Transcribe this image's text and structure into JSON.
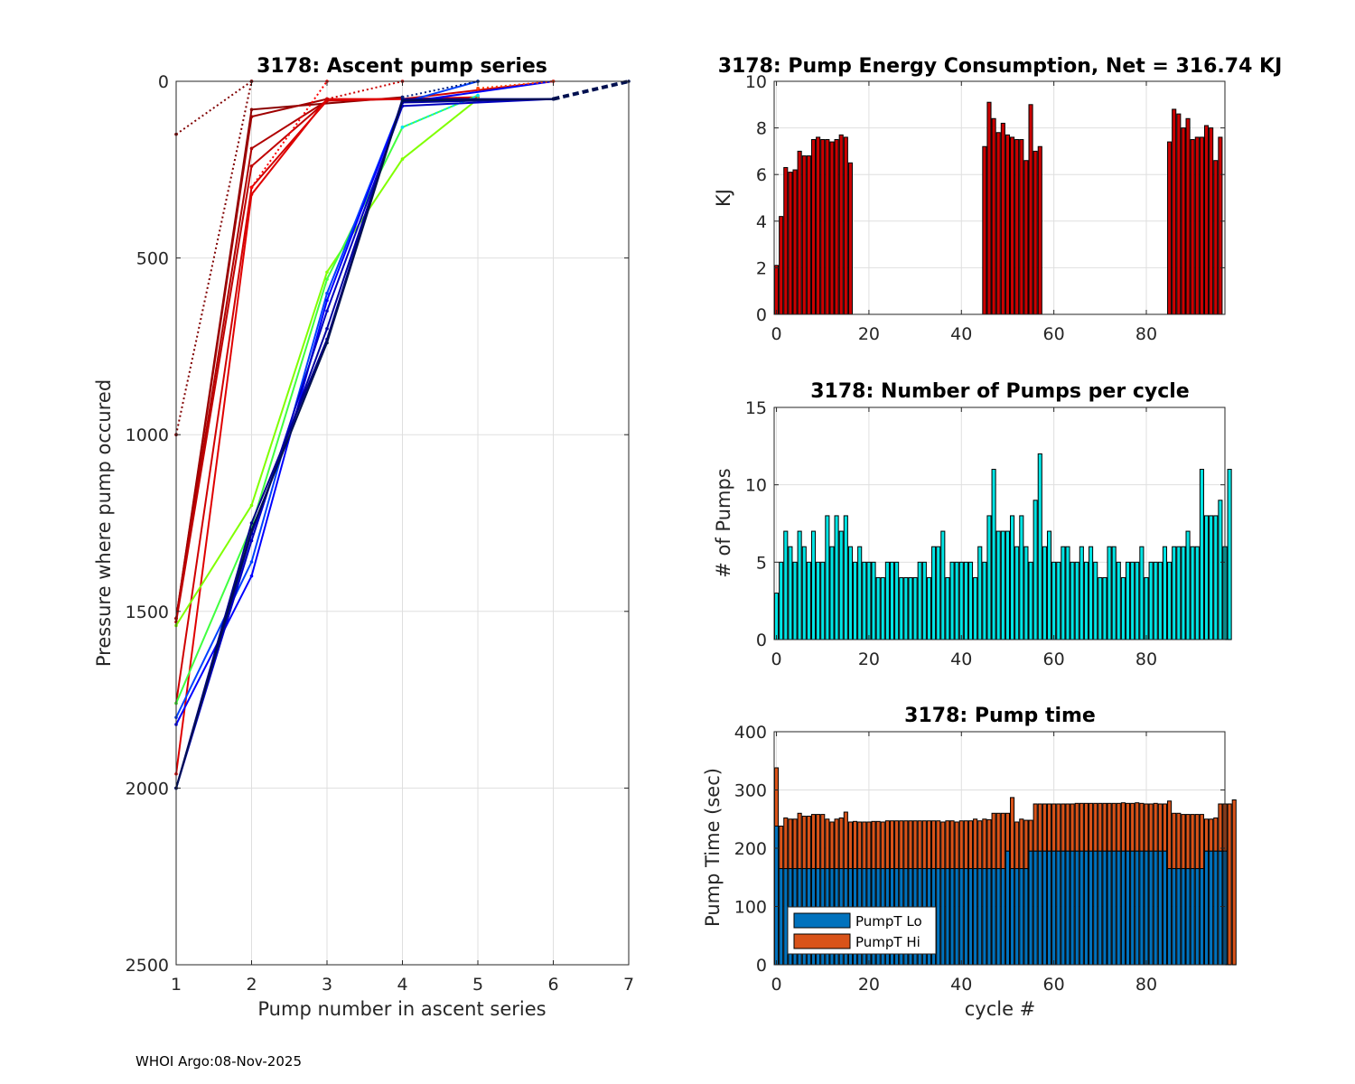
{
  "footer": "WHOI Argo:08-Nov-2025",
  "chart_data": [
    {
      "id": "ascent",
      "type": "line",
      "title": "3178: Ascent pump series",
      "xlabel": "Pump number in ascent series",
      "ylabel": "Pressure where pump occured",
      "xlim": [
        1,
        7
      ],
      "ylim": [
        0,
        2500
      ],
      "y_reversed": true,
      "xticks": [
        1,
        2,
        3,
        4,
        5,
        6,
        7
      ],
      "yticks": [
        0,
        500,
        1000,
        1500,
        2000,
        2500
      ],
      "grid": true,
      "series": [
        {
          "name": "cycle-0",
          "color": "#800000",
          "style": "dotted",
          "x": [
            1,
            2
          ],
          "y": [
            150,
            0
          ]
        },
        {
          "name": "cycle-1",
          "color": "#800000",
          "style": "dotted",
          "x": [
            1,
            2
          ],
          "y": [
            1000,
            0
          ]
        },
        {
          "name": "cycle-2",
          "color": "#8b0000",
          "style": "solid",
          "x": [
            1,
            2,
            4
          ],
          "y": [
            1520,
            80,
            45
          ]
        },
        {
          "name": "cycle-3",
          "color": "#a00000",
          "style": "solid",
          "x": [
            1,
            2,
            3
          ],
          "y": [
            1520,
            100,
            50
          ]
        },
        {
          "name": "cycle-4",
          "color": "#b00000",
          "style": "solid",
          "x": [
            1,
            2,
            3
          ],
          "y": [
            1520,
            190,
            55
          ]
        },
        {
          "name": "cycle-5",
          "color": "#c00000",
          "style": "solid",
          "x": [
            1,
            2,
            3
          ],
          "y": [
            1530,
            240,
            55
          ]
        },
        {
          "name": "cycle-6",
          "color": "#d00000",
          "style": "solid",
          "x": [
            1,
            2,
            3,
            4,
            6
          ],
          "y": [
            1760,
            300,
            55,
            50,
            0
          ]
        },
        {
          "name": "cycle-7",
          "color": "#e00000",
          "style": "solid",
          "x": [
            1,
            2,
            3,
            4,
            5
          ],
          "y": [
            1960,
            320,
            50,
            50,
            45
          ]
        },
        {
          "name": "cycle-8",
          "color": "#ff0000",
          "style": "dotted",
          "x": [
            2,
            3
          ],
          "y": [
            300,
            0
          ]
        },
        {
          "name": "cycle-9",
          "color": "#cc0000",
          "style": "dotted",
          "x": [
            3,
            4
          ],
          "y": [
            50,
            0
          ]
        },
        {
          "name": "cycle-10",
          "color": "#80ff00",
          "style": "solid",
          "x": [
            1,
            2,
            3,
            4,
            5
          ],
          "y": [
            1540,
            1200,
            540,
            220,
            50
          ]
        },
        {
          "name": "cycle-11",
          "color": "#40ff40",
          "style": "solid",
          "x": [
            1,
            2,
            3,
            4,
            5
          ],
          "y": [
            1760,
            1260,
            560,
            130,
            40
          ]
        },
        {
          "name": "cycle-12",
          "color": "#00e0ff",
          "style": "dotted",
          "x": [
            4,
            5
          ],
          "y": [
            130,
            40
          ]
        },
        {
          "name": "cycle-13",
          "color": "#0040ff",
          "style": "solid",
          "x": [
            1,
            2,
            3,
            4,
            5
          ],
          "y": [
            1800,
            1360,
            600,
            60,
            0
          ]
        },
        {
          "name": "cycle-14",
          "color": "#0000ff",
          "style": "solid",
          "x": [
            1,
            2,
            3,
            4,
            6
          ],
          "y": [
            1820,
            1400,
            620,
            60,
            0
          ]
        },
        {
          "name": "cycle-15",
          "color": "#0000c0",
          "style": "solid",
          "x": [
            1,
            2,
            3,
            4,
            6
          ],
          "y": [
            2000,
            1300,
            650,
            70,
            50
          ]
        },
        {
          "name": "cycle-16",
          "color": "#0000a0",
          "style": "solid",
          "x": [
            1,
            2,
            3,
            4,
            6
          ],
          "y": [
            2000,
            1280,
            700,
            60,
            50
          ]
        },
        {
          "name": "cycle-17",
          "color": "#00008b",
          "style": "solid",
          "x": [
            1,
            2,
            3,
            4,
            6
          ],
          "y": [
            2000,
            1250,
            730,
            50,
            50
          ]
        },
        {
          "name": "cycle-18",
          "color": "#001050",
          "style": "solid",
          "x": [
            1,
            2,
            3,
            4,
            6
          ],
          "y": [
            2000,
            1270,
            740,
            55,
            50
          ]
        },
        {
          "name": "cycle-19",
          "color": "#001050",
          "style": "dashed",
          "x": [
            6,
            7
          ],
          "y": [
            50,
            0
          ]
        },
        {
          "name": "cycle-20",
          "color": "#002080",
          "style": "dotted",
          "x": [
            4,
            5
          ],
          "y": [
            45,
            0
          ]
        },
        {
          "name": "cycle-21",
          "color": "#ff4000",
          "style": "dotted",
          "x": [
            5,
            6
          ],
          "y": [
            20,
            0
          ]
        }
      ]
    },
    {
      "id": "energy",
      "type": "bar",
      "title": "3178: Pump Energy Consumption,  Net = 316.74 KJ",
      "xlabel": "",
      "ylabel": "KJ",
      "xlim": [
        -0.5,
        97
      ],
      "ylim": [
        0,
        10
      ],
      "xticks": [
        0,
        20,
        40,
        60,
        80
      ],
      "yticks": [
        0,
        2,
        4,
        6,
        8,
        10
      ],
      "grid": true,
      "color": "#cc0000",
      "x": [
        0,
        1,
        2,
        3,
        4,
        5,
        6,
        7,
        8,
        9,
        10,
        11,
        12,
        13,
        14,
        15,
        16,
        45,
        46,
        47,
        48,
        49,
        50,
        51,
        52,
        53,
        54,
        55,
        56,
        57,
        85,
        86,
        87,
        88,
        89,
        90,
        91,
        92,
        93,
        94,
        95,
        96
      ],
      "values": [
        2.1,
        4.2,
        6.3,
        6.1,
        6.2,
        7.0,
        6.8,
        6.8,
        7.5,
        7.6,
        7.5,
        7.5,
        7.4,
        7.5,
        7.7,
        7.6,
        6.5,
        7.2,
        9.1,
        8.4,
        7.8,
        8.2,
        7.7,
        7.6,
        7.5,
        7.5,
        6.6,
        9.0,
        7.0,
        7.2,
        7.4,
        8.8,
        8.6,
        8.0,
        8.4,
        7.5,
        7.6,
        7.6,
        8.1,
        8.0,
        6.6,
        7.6
      ]
    },
    {
      "id": "pumps",
      "type": "bar",
      "title": "3178: Number of Pumps per cycle",
      "xlabel": "",
      "ylabel": "# of Pumps",
      "xlim": [
        -0.5,
        97
      ],
      "ylim": [
        0,
        15
      ],
      "xticks": [
        0,
        20,
        40,
        60,
        80
      ],
      "yticks": [
        0,
        5,
        10,
        15
      ],
      "grid": true,
      "color": "#00e5e5",
      "values": [
        3,
        5,
        7,
        6,
        5,
        7,
        6,
        5,
        7,
        5,
        5,
        8,
        6,
        8,
        7,
        8,
        6,
        5,
        6,
        5,
        5,
        5,
        4,
        4,
        5,
        5,
        5,
        4,
        4,
        4,
        4,
        5,
        5,
        4,
        6,
        6,
        7,
        4,
        5,
        5,
        5,
        5,
        5,
        4,
        6,
        5,
        8,
        11,
        7,
        7,
        7,
        8,
        6,
        8,
        6,
        5,
        9,
        12,
        6,
        7,
        5,
        5,
        6,
        6,
        5,
        5,
        6,
        5,
        6,
        5,
        4,
        4,
        6,
        6,
        5,
        4,
        5,
        5,
        5,
        6,
        4,
        5,
        5,
        5,
        6,
        5,
        6,
        6,
        6,
        7,
        6,
        6,
        11,
        8,
        8,
        8,
        9,
        6,
        11
      ]
    },
    {
      "id": "pumptime",
      "type": "stacked-bar",
      "title": "3178: Pump time",
      "xlabel": "cycle #",
      "ylabel": "Pump Time (sec)",
      "xlim": [
        -0.5,
        97
      ],
      "ylim": [
        0,
        400
      ],
      "xticks": [
        0,
        20,
        40,
        60,
        80
      ],
      "yticks": [
        0,
        100,
        200,
        300,
        400
      ],
      "grid": true,
      "legend_position": "bottom-left",
      "series": [
        {
          "name": "PumpT Lo",
          "color": "#0072bd",
          "segments": [
            {
              "from": 0,
              "to": 0,
              "value": 238
            },
            {
              "from": 1,
              "to": 49,
              "value": 165
            },
            {
              "from": 50,
              "to": 50,
              "value": 195
            },
            {
              "from": 51,
              "to": 54,
              "value": 165
            },
            {
              "from": 55,
              "to": 84,
              "value": 195
            },
            {
              "from": 85,
              "to": 92,
              "value": 165
            },
            {
              "from": 93,
              "to": 97,
              "value": 195
            }
          ]
        },
        {
          "name": "PumpT Hi",
          "color": "#d95319",
          "totals": [
            338,
            238,
            252,
            250,
            250,
            260,
            255,
            255,
            258,
            258,
            258,
            250,
            245,
            250,
            252,
            262,
            245,
            246,
            245,
            245,
            245,
            246,
            246,
            245,
            247,
            247,
            247,
            247,
            247,
            247,
            247,
            247,
            247,
            247,
            247,
            247,
            245,
            247,
            247,
            245,
            247,
            247,
            247,
            250,
            247,
            250,
            249,
            260,
            260,
            260,
            260,
            287,
            245,
            250,
            248,
            248,
            276,
            276,
            276,
            276,
            276,
            276,
            276,
            276,
            276,
            277,
            277,
            277,
            277,
            277,
            277,
            277,
            277,
            277,
            277,
            278,
            277,
            277,
            278,
            277,
            276,
            276,
            277,
            276,
            276,
            281,
            260,
            260,
            258,
            258,
            258,
            258,
            258,
            250,
            250,
            252,
            276,
            276,
            276,
            283
          ]
        }
      ]
    }
  ]
}
